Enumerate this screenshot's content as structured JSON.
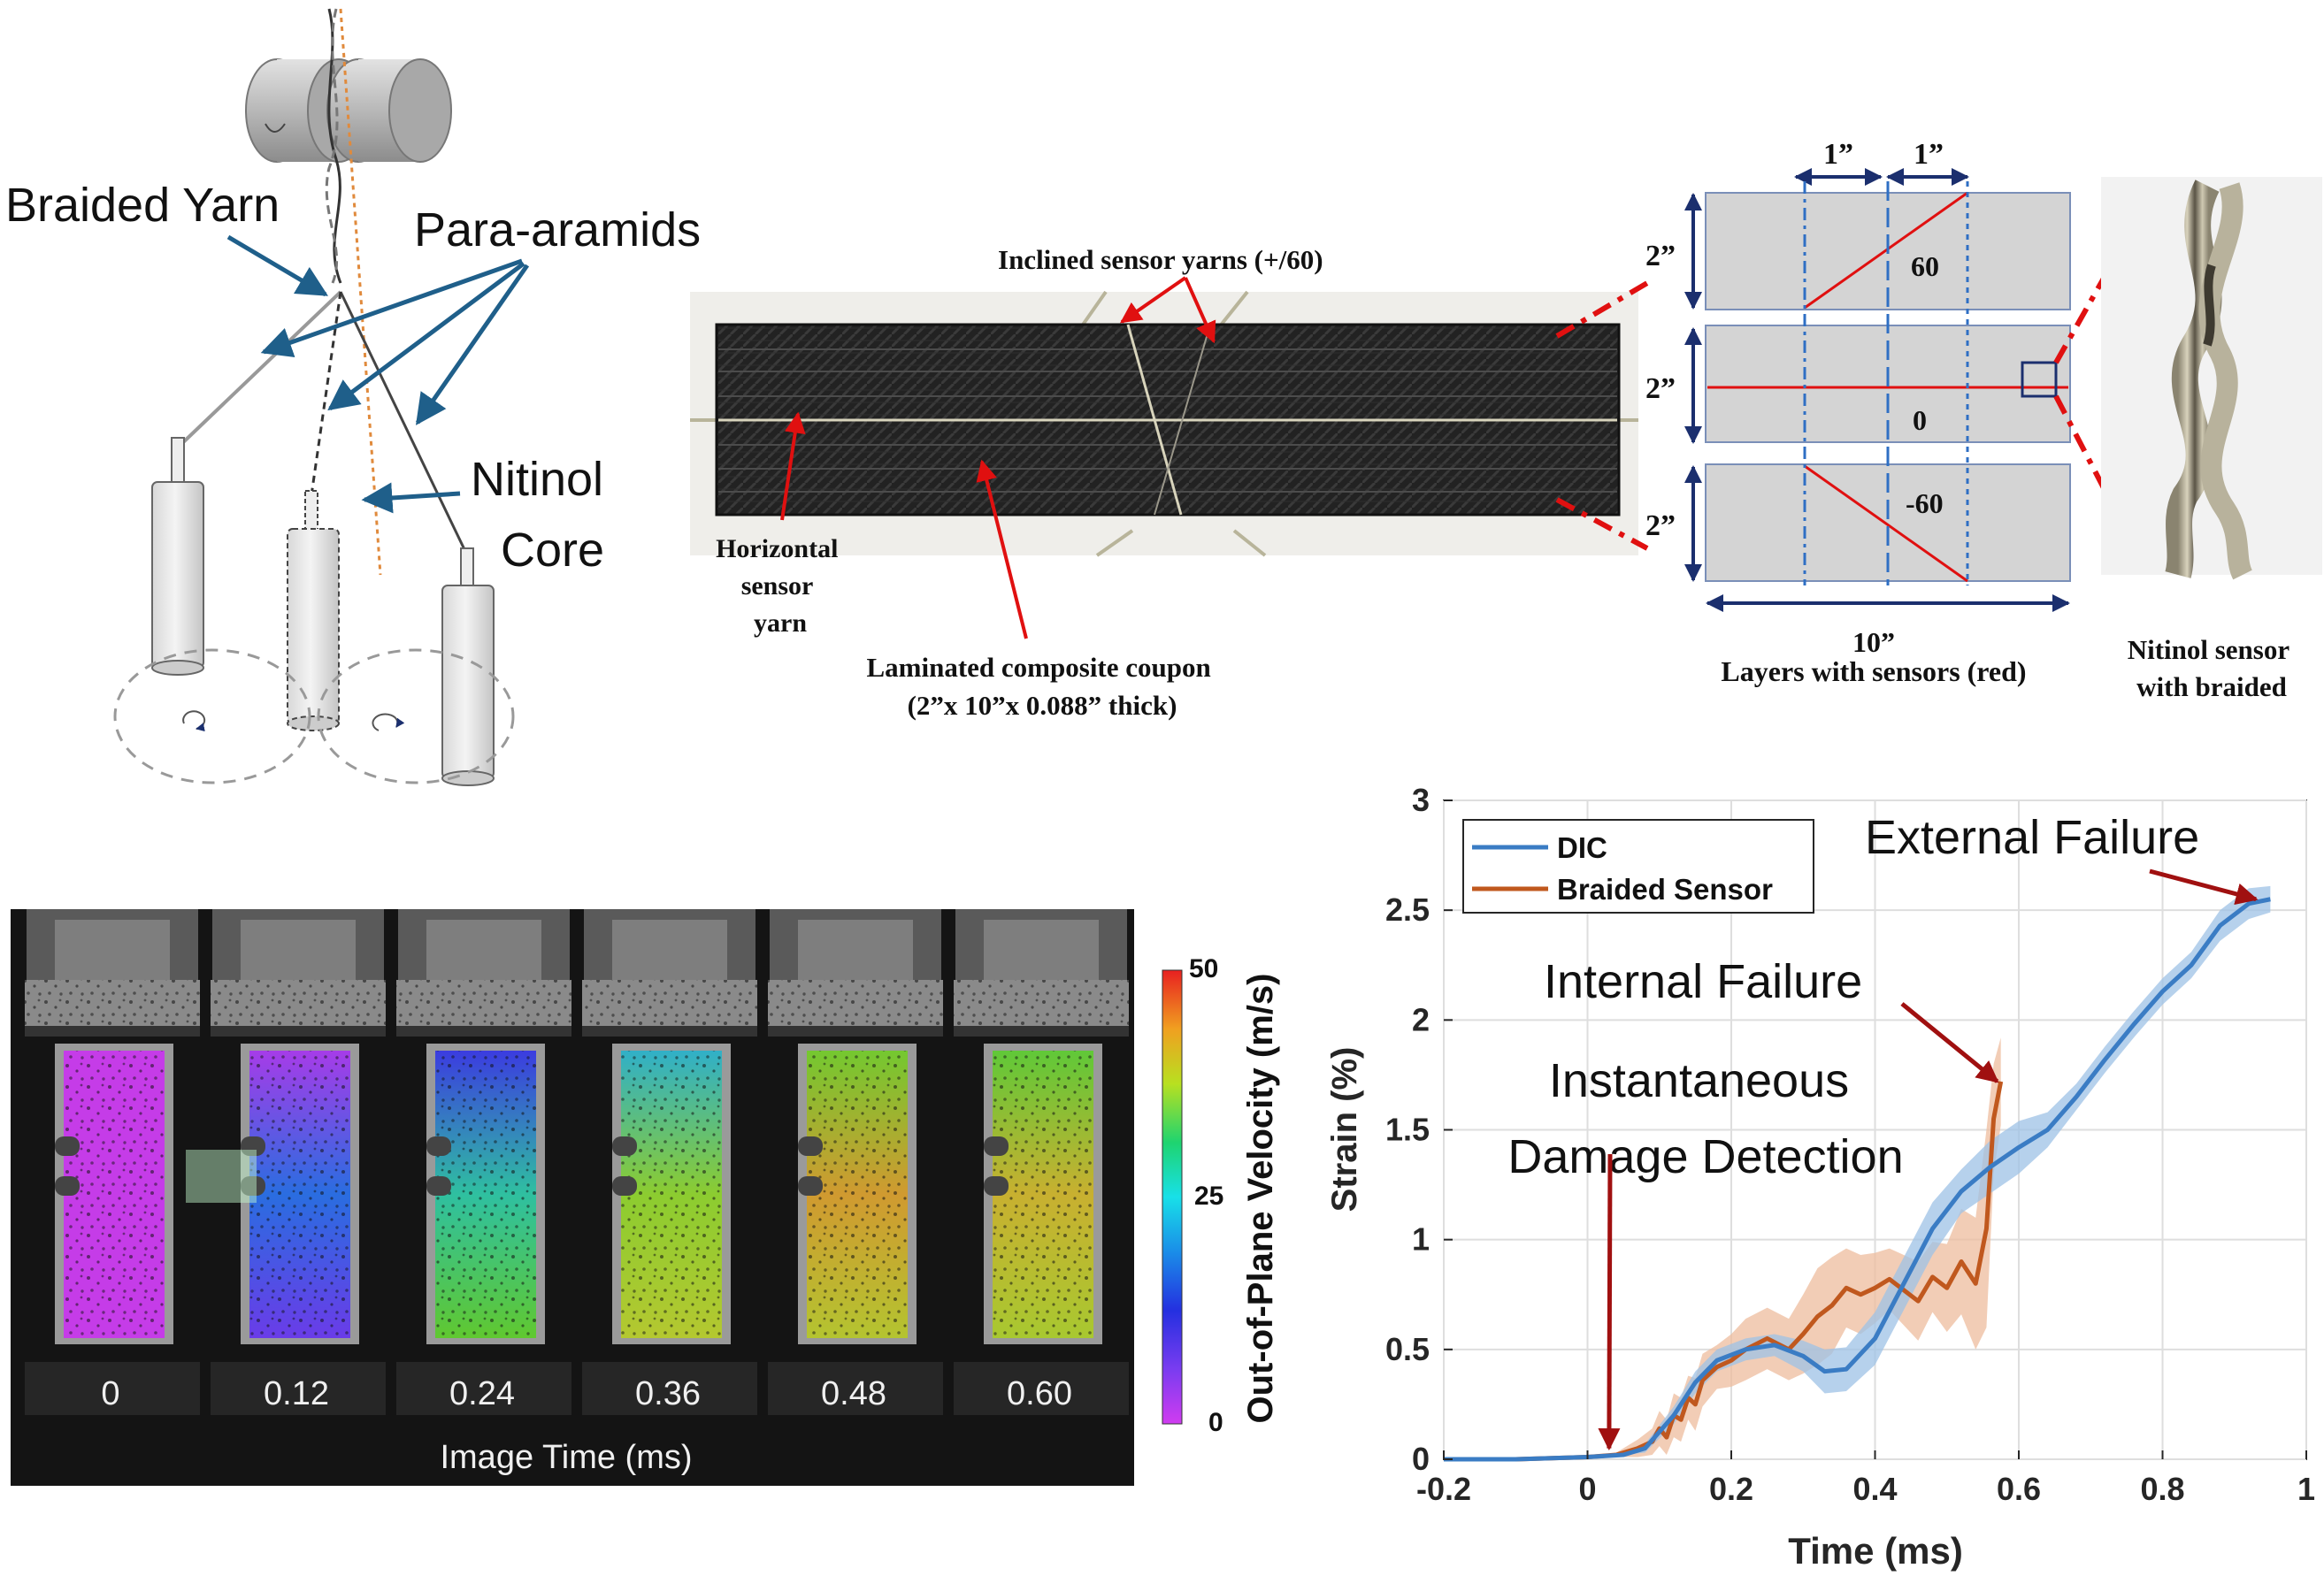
{
  "braiding_diagram": {
    "label_braided_yarn": "Braided Yarn",
    "label_para_aramids": "Para-aramids",
    "label_nitinol": "Nitinol",
    "label_core": "Core"
  },
  "coupon": {
    "inclined_label": "Inclined sensor yarns (+/60)",
    "horizontal_label_lines": [
      "Horizontal",
      "sensor",
      "yarn"
    ],
    "coupon_label_line1": "Laminated composite coupon",
    "coupon_label_line2": "(2”x 10”x 0.088” thick)"
  },
  "layers": {
    "top_dim_left": "1”",
    "top_dim_right": "1”",
    "height_labels": [
      "2”",
      "2”",
      "2”"
    ],
    "angle_labels": [
      "60",
      "0",
      "-60"
    ],
    "width_label": "10”",
    "caption": "Layers with sensors (red)"
  },
  "nitinol_photo": {
    "caption_line1": "Nitinol sensor",
    "caption_line2": "with braided"
  },
  "dic_panel": {
    "frame_times": [
      "0",
      "0.12",
      "0.24",
      "0.36",
      "0.48",
      "0.60"
    ],
    "xlabel": "Image Time (ms)",
    "colorbar_label": "Out-of-Plane Velocity (m/s)",
    "colorbar_ticks": [
      "50",
      "25",
      "0"
    ],
    "colorbar_range": [
      0,
      50
    ]
  },
  "chart_data": {
    "type": "line",
    "title": "",
    "xlabel": "Time (ms)",
    "ylabel": "Strain (%)",
    "xlim": [
      -0.2,
      1.0
    ],
    "ylim": [
      0,
      3
    ],
    "xticks": [
      -0.2,
      0,
      0.2,
      0.4,
      0.6,
      0.8,
      1
    ],
    "xtick_labels": [
      "-0.2",
      "0",
      "0.2",
      "0.4",
      "0.6",
      "0.8",
      "1"
    ],
    "yticks": [
      0,
      0.5,
      1,
      1.5,
      2,
      2.5,
      3
    ],
    "ytick_labels": [
      "0",
      "0.5",
      "1",
      "1.5",
      "2",
      "2.5",
      "3"
    ],
    "grid": true,
    "legend_position": "top-left",
    "series": [
      {
        "name": "DIC",
        "color": "#3a7cc4",
        "band_color": "#9ec1e6",
        "x": [
          -0.2,
          -0.1,
          0.0,
          0.05,
          0.08,
          0.12,
          0.15,
          0.18,
          0.22,
          0.26,
          0.3,
          0.33,
          0.36,
          0.4,
          0.44,
          0.48,
          0.52,
          0.56,
          0.6,
          0.64,
          0.68,
          0.72,
          0.76,
          0.8,
          0.84,
          0.88,
          0.92,
          0.95
        ],
        "y": [
          0,
          0,
          0.01,
          0.02,
          0.05,
          0.2,
          0.35,
          0.45,
          0.5,
          0.52,
          0.47,
          0.4,
          0.41,
          0.55,
          0.8,
          1.05,
          1.22,
          1.33,
          1.42,
          1.5,
          1.65,
          1.82,
          1.98,
          2.13,
          2.25,
          2.43,
          2.53,
          2.55
        ],
        "band": [
          0,
          0,
          0,
          0,
          0.02,
          0.04,
          0.05,
          0.05,
          0.05,
          0.05,
          0.07,
          0.1,
          0.1,
          0.12,
          0.12,
          0.12,
          0.1,
          0.12,
          0.12,
          0.08,
          0.06,
          0.06,
          0.06,
          0.06,
          0.06,
          0.07,
          0.07,
          0.06
        ]
      },
      {
        "name": "Braided Sensor",
        "color": "#c0581e",
        "band_color": "#edbc9e",
        "x": [
          -0.2,
          -0.1,
          0.0,
          0.04,
          0.07,
          0.09,
          0.1,
          0.11,
          0.12,
          0.13,
          0.14,
          0.15,
          0.16,
          0.18,
          0.2,
          0.22,
          0.25,
          0.28,
          0.3,
          0.32,
          0.34,
          0.36,
          0.38,
          0.4,
          0.42,
          0.44,
          0.46,
          0.48,
          0.5,
          0.52,
          0.54,
          0.555,
          0.565,
          0.575
        ],
        "y": [
          0,
          0,
          0.01,
          0.02,
          0.05,
          0.08,
          0.14,
          0.1,
          0.2,
          0.18,
          0.28,
          0.25,
          0.36,
          0.42,
          0.45,
          0.5,
          0.55,
          0.5,
          0.57,
          0.65,
          0.7,
          0.78,
          0.75,
          0.78,
          0.82,
          0.77,
          0.72,
          0.83,
          0.78,
          0.9,
          0.8,
          1.05,
          1.55,
          1.72
        ],
        "band": [
          0,
          0,
          0,
          0.01,
          0.04,
          0.06,
          0.08,
          0.08,
          0.1,
          0.1,
          0.1,
          0.12,
          0.12,
          0.1,
          0.12,
          0.14,
          0.14,
          0.14,
          0.18,
          0.22,
          0.22,
          0.18,
          0.18,
          0.16,
          0.14,
          0.16,
          0.18,
          0.16,
          0.2,
          0.24,
          0.3,
          0.45,
          0.25,
          0.2
        ]
      }
    ],
    "annotations": [
      {
        "text": "External Failure",
        "arrow_to": [
          0.93,
          2.55
        ]
      },
      {
        "text": "Internal Failure",
        "arrow_to": [
          0.57,
          1.72
        ]
      },
      {
        "text_lines": [
          "Instantaneous",
          "Damage Detection"
        ],
        "arrow_to": [
          0.03,
          0.05
        ]
      }
    ]
  }
}
